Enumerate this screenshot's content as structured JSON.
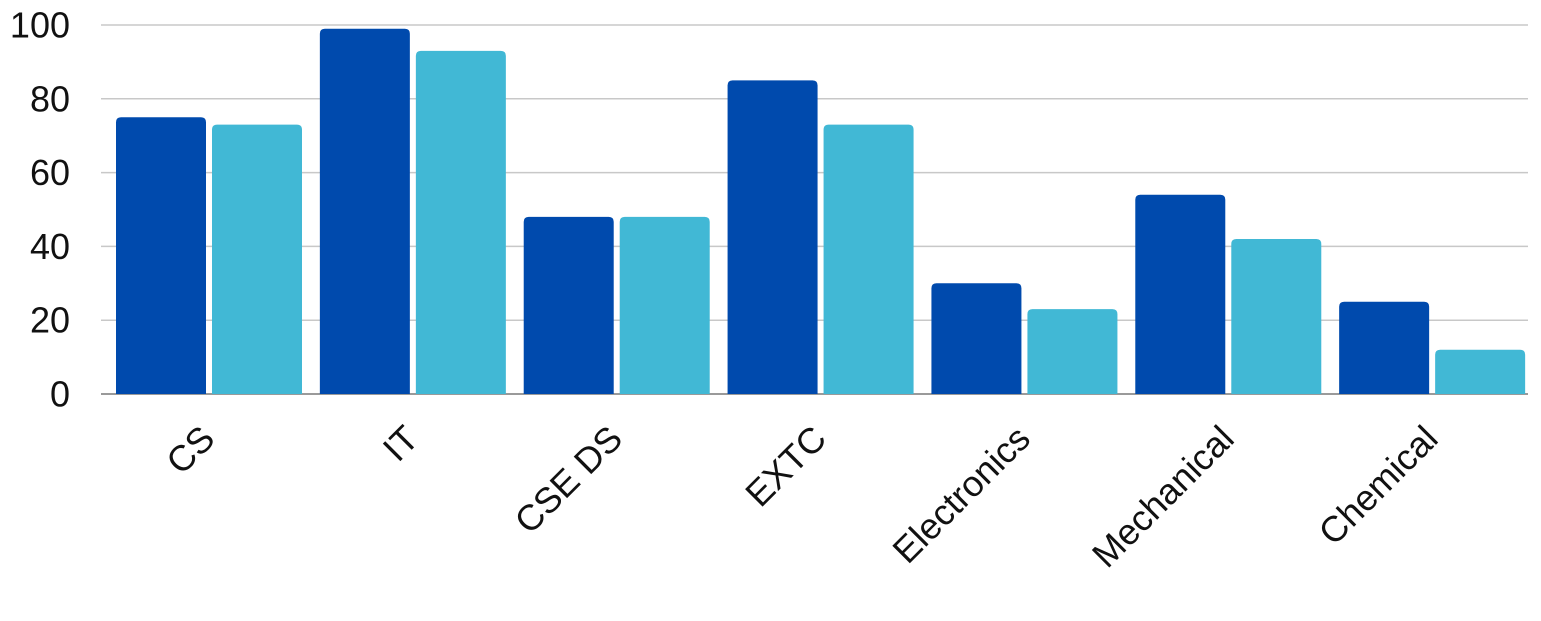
{
  "chart_data": {
    "type": "bar",
    "title": "",
    "xlabel": "",
    "ylabel": "",
    "categories": [
      "CS",
      "IT",
      "CSE DS",
      "EXTC",
      "Electronics",
      "Mechanical",
      "Chemical"
    ],
    "series": [
      {
        "color": "#004AAD",
        "values": [
          75,
          99,
          48,
          85,
          30,
          54,
          25
        ]
      },
      {
        "color": "#41B8D5",
        "values": [
          73,
          93,
          48,
          73,
          23,
          42,
          12
        ]
      }
    ],
    "ylim": [
      0,
      100
    ],
    "yticks": [
      0,
      20,
      40,
      60,
      80,
      100
    ],
    "grid": true,
    "legend": "none",
    "colors": {
      "gridline": "#C8C8C8",
      "baseline": "#9A9A9A",
      "text": "#111111"
    }
  }
}
